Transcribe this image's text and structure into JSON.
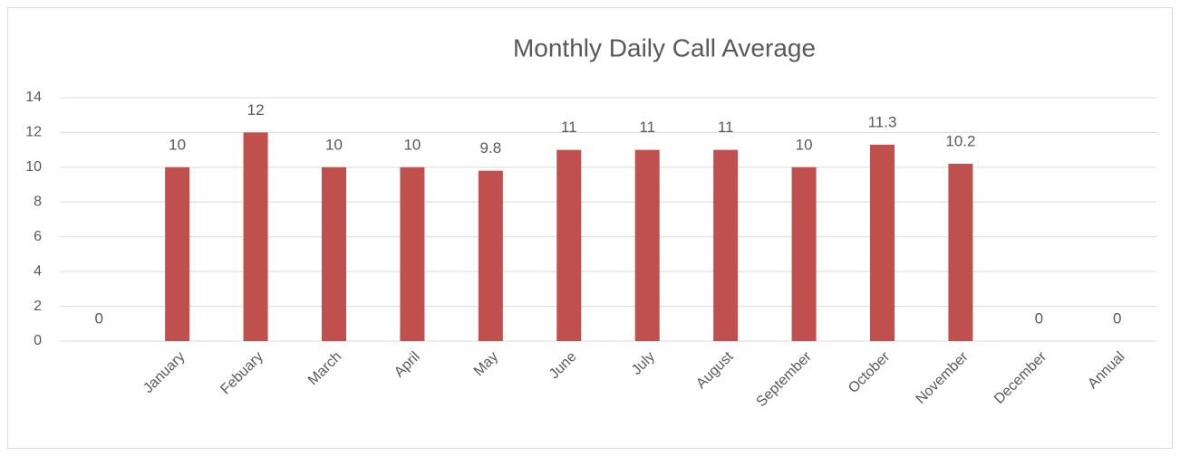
{
  "chart_data": {
    "type": "bar",
    "title": "Monthly Daily Call Average",
    "categories": [
      null,
      "January",
      "Febuary",
      "March",
      "April",
      "May",
      "June",
      "July",
      "August",
      "September",
      "October",
      "November",
      "December",
      "Annual"
    ],
    "values": [
      0,
      10,
      12,
      10,
      10,
      9.8,
      11,
      11,
      11,
      10,
      11.3,
      10.2,
      0,
      0
    ],
    "color": "#c0504d",
    "ylim": [
      0,
      14
    ],
    "yticks": [
      0,
      2,
      4,
      6,
      8,
      10,
      12,
      14
    ],
    "grid": true
  }
}
